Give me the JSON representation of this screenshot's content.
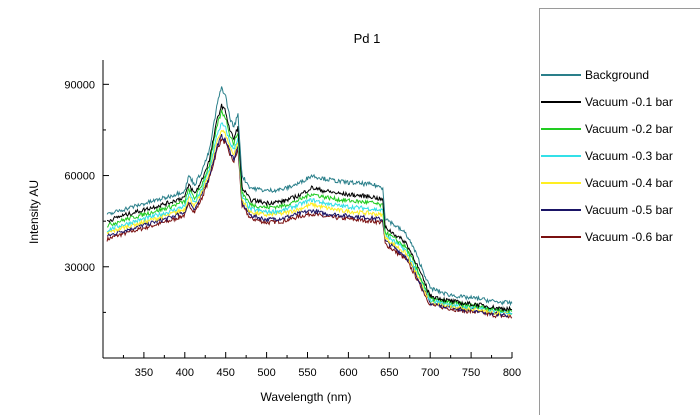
{
  "chart_data": {
    "type": "line",
    "title": "Pd 1",
    "xlabel": "Wavelength (nm)",
    "ylabel": "Intensity AU",
    "xlim": [
      300,
      800
    ],
    "ylim": [
      0,
      98000
    ],
    "xticks": [
      350,
      400,
      450,
      500,
      550,
      600,
      650,
      700,
      750,
      800
    ],
    "yticks": [
      30000,
      60000,
      90000
    ],
    "grid": false,
    "legend_position": "right",
    "x": [
      305,
      320,
      340,
      360,
      380,
      400,
      405,
      412,
      420,
      430,
      440,
      445,
      450,
      455,
      460,
      465,
      470,
      480,
      500,
      520,
      540,
      555,
      570,
      590,
      610,
      630,
      642,
      645,
      660,
      670,
      680,
      700,
      720,
      740,
      760,
      780,
      800
    ],
    "series": [
      {
        "name": "Background",
        "color": "#2a7f8a",
        "values": [
          47000,
          48500,
          50000,
          51500,
          53000,
          55000,
          60000,
          57000,
          61000,
          68000,
          84000,
          89000,
          86000,
          79000,
          76000,
          80000,
          60000,
          56000,
          55000,
          55500,
          57500,
          60000,
          59000,
          58000,
          57500,
          57000,
          56000,
          46000,
          43000,
          41000,
          36000,
          23000,
          21000,
          20000,
          19500,
          18500,
          18000
        ]
      },
      {
        "name": "Vacuum -0.1 bar",
        "color": "#000000",
        "values": [
          45000,
          46500,
          48000,
          49500,
          51000,
          53000,
          57000,
          54000,
          58000,
          65000,
          79000,
          83000,
          81000,
          75000,
          72000,
          76000,
          56000,
          52000,
          51000,
          51500,
          53500,
          56000,
          55000,
          54000,
          53500,
          53000,
          52000,
          43000,
          40000,
          38000,
          33000,
          20500,
          19000,
          18000,
          17500,
          16500,
          16000
        ]
      },
      {
        "name": "Vacuum -0.2 bar",
        "color": "#22cc22",
        "values": [
          43500,
          45000,
          46500,
          48000,
          49500,
          51500,
          55500,
          52500,
          56500,
          63500,
          77000,
          81000,
          79000,
          73500,
          70500,
          74500,
          54500,
          50500,
          49500,
          50000,
          52000,
          54000,
          53000,
          52000,
          51500,
          51000,
          50000,
          41500,
          38500,
          36500,
          31500,
          19500,
          18500,
          17500,
          17000,
          16000,
          15500
        ]
      },
      {
        "name": "Vacuum -0.3 bar",
        "color": "#33e0e8",
        "values": [
          42000,
          43500,
          45000,
          46500,
          48000,
          50000,
          54000,
          51000,
          55000,
          62000,
          74000,
          77000,
          75500,
          71000,
          68500,
          72500,
          53000,
          49000,
          48000,
          48500,
          50500,
          52000,
          51000,
          50000,
          49500,
          49000,
          48500,
          40500,
          37500,
          35500,
          30500,
          19000,
          18000,
          17000,
          16500,
          15500,
          15000
        ]
      },
      {
        "name": "Vacuum -0.4 bar",
        "color": "#ffee22",
        "values": [
          41000,
          42500,
          44000,
          45500,
          47000,
          49000,
          53000,
          50000,
          54000,
          61000,
          72000,
          75000,
          73500,
          69500,
          67000,
          71000,
          52000,
          48000,
          47000,
          47500,
          49000,
          50500,
          49500,
          48500,
          48000,
          47500,
          47000,
          39500,
          36500,
          34500,
          29500,
          18500,
          17500,
          16500,
          16000,
          15000,
          14500
        ]
      },
      {
        "name": "Vacuum -0.5 bar",
        "color": "#1a1466",
        "values": [
          40000,
          41500,
          43000,
          44500,
          46000,
          48000,
          51500,
          49000,
          53000,
          60000,
          70000,
          73000,
          71500,
          68000,
          65500,
          69500,
          51000,
          47000,
          45500,
          46000,
          47500,
          48500,
          47500,
          47000,
          46500,
          46000,
          45500,
          38500,
          35500,
          33500,
          29000,
          18000,
          17000,
          16000,
          15500,
          14500,
          14000
        ]
      },
      {
        "name": "Vacuum -0.6 bar",
        "color": "#7a1010",
        "values": [
          39000,
          40500,
          42000,
          43500,
          45000,
          47000,
          50500,
          48000,
          52000,
          59000,
          69000,
          72000,
          70500,
          67000,
          64500,
          68500,
          50000,
          46000,
          44500,
          45000,
          46500,
          47500,
          46500,
          46000,
          45500,
          45000,
          44500,
          37500,
          34500,
          32500,
          28000,
          17500,
          16500,
          15500,
          15000,
          14000,
          13500
        ]
      }
    ]
  }
}
